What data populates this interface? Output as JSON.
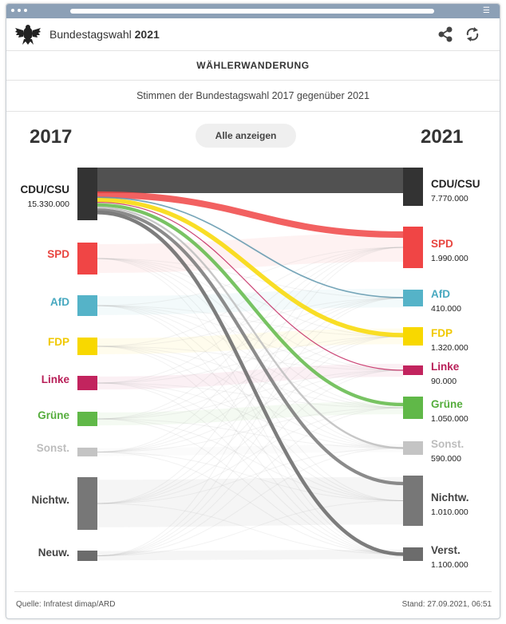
{
  "header": {
    "title_prefix": "Bundestagswahl",
    "title_year": "2021",
    "logo_icon": "eagle-icon",
    "share_icon": "share-icon",
    "refresh_icon": "refresh-icon"
  },
  "section_title": "WÄHLERWANDERUNG",
  "subtitle": "Stimmen der Bundestagswahl 2017 gegenüber 2021",
  "controls": {
    "year_left": "2017",
    "year_right": "2021",
    "show_all_label": "Alle anzeigen"
  },
  "chart_data": {
    "type": "sankey",
    "source_party": "CDU/CSU",
    "left_nodes": [
      {
        "id": "cdu",
        "label": "CDU/CSU",
        "value": "15.330.000",
        "color": "#333333",
        "label_color": "#222222"
      },
      {
        "id": "spd",
        "label": "SPD",
        "value": "",
        "color": "#f04545",
        "label_color": "#e8453f"
      },
      {
        "id": "afd",
        "label": "AfD",
        "value": "",
        "color": "#55b3c8",
        "label_color": "#48a9c0"
      },
      {
        "id": "fdp",
        "label": "FDP",
        "value": "",
        "color": "#f8d800",
        "label_color": "#f0c800"
      },
      {
        "id": "linke",
        "label": "Linke",
        "value": "",
        "color": "#c2245e",
        "label_color": "#b81f58"
      },
      {
        "id": "gruene",
        "label": "Grüne",
        "value": "",
        "color": "#60b848",
        "label_color": "#55ad3c"
      },
      {
        "id": "sonst",
        "label": "Sonst.",
        "value": "",
        "color": "#c4c4c4",
        "label_color": "#bdbdbd"
      },
      {
        "id": "nichtw",
        "label": "Nichtw.",
        "value": "",
        "color": "#777777",
        "label_color": "#444444"
      },
      {
        "id": "neuw",
        "label": "Neuw.",
        "value": "",
        "color": "#6c6c6c",
        "label_color": "#444444"
      }
    ],
    "right_nodes": [
      {
        "id": "cdu",
        "label": "CDU/CSU",
        "value": "7.770.000",
        "color": "#333333",
        "label_color": "#222222"
      },
      {
        "id": "spd",
        "label": "SPD",
        "value": "1.990.000",
        "color": "#f04545",
        "label_color": "#e8453f"
      },
      {
        "id": "afd",
        "label": "AfD",
        "value": "410.000",
        "color": "#55b3c8",
        "label_color": "#48a9c0"
      },
      {
        "id": "fdp",
        "label": "FDP",
        "value": "1.320.000",
        "color": "#f8d800",
        "label_color": "#f0c800"
      },
      {
        "id": "linke",
        "label": "Linke",
        "value": "90.000",
        "color": "#c2245e",
        "label_color": "#b81f58"
      },
      {
        "id": "gruene",
        "label": "Grüne",
        "value": "1.050.000",
        "color": "#60b848",
        "label_color": "#55ad3c"
      },
      {
        "id": "sonst",
        "label": "Sonst.",
        "value": "590.000",
        "color": "#c4c4c4",
        "label_color": "#bdbdbd"
      },
      {
        "id": "nichtw",
        "label": "Nichtw.",
        "value": "1.010.000",
        "color": "#777777",
        "label_color": "#444444"
      },
      {
        "id": "verst",
        "label": "Verst.",
        "value": "1.100.000",
        "color": "#6c6c6c",
        "label_color": "#444444"
      }
    ],
    "flows_from_source": [
      {
        "to": "cdu",
        "value": 7770000,
        "color": "#333333"
      },
      {
        "to": "spd",
        "value": 1990000,
        "color": "#f04545"
      },
      {
        "to": "afd",
        "value": 410000,
        "color": "#5f97ad"
      },
      {
        "to": "fdp",
        "value": 1320000,
        "color": "#f8d800"
      },
      {
        "to": "linke",
        "value": 90000,
        "color": "#c2245e"
      },
      {
        "to": "gruene",
        "value": 1050000,
        "color": "#60b848"
      },
      {
        "to": "sonst",
        "value": 590000,
        "color": "#bdbdbd"
      },
      {
        "to": "nichtw",
        "value": 1010000,
        "color": "#777777"
      },
      {
        "to": "verst",
        "value": 1100000,
        "color": "#666666"
      }
    ]
  },
  "footer": {
    "source": "Quelle: Infratest dimap/ARD",
    "stand": "Stand: 27.09.2021, 06:51"
  }
}
